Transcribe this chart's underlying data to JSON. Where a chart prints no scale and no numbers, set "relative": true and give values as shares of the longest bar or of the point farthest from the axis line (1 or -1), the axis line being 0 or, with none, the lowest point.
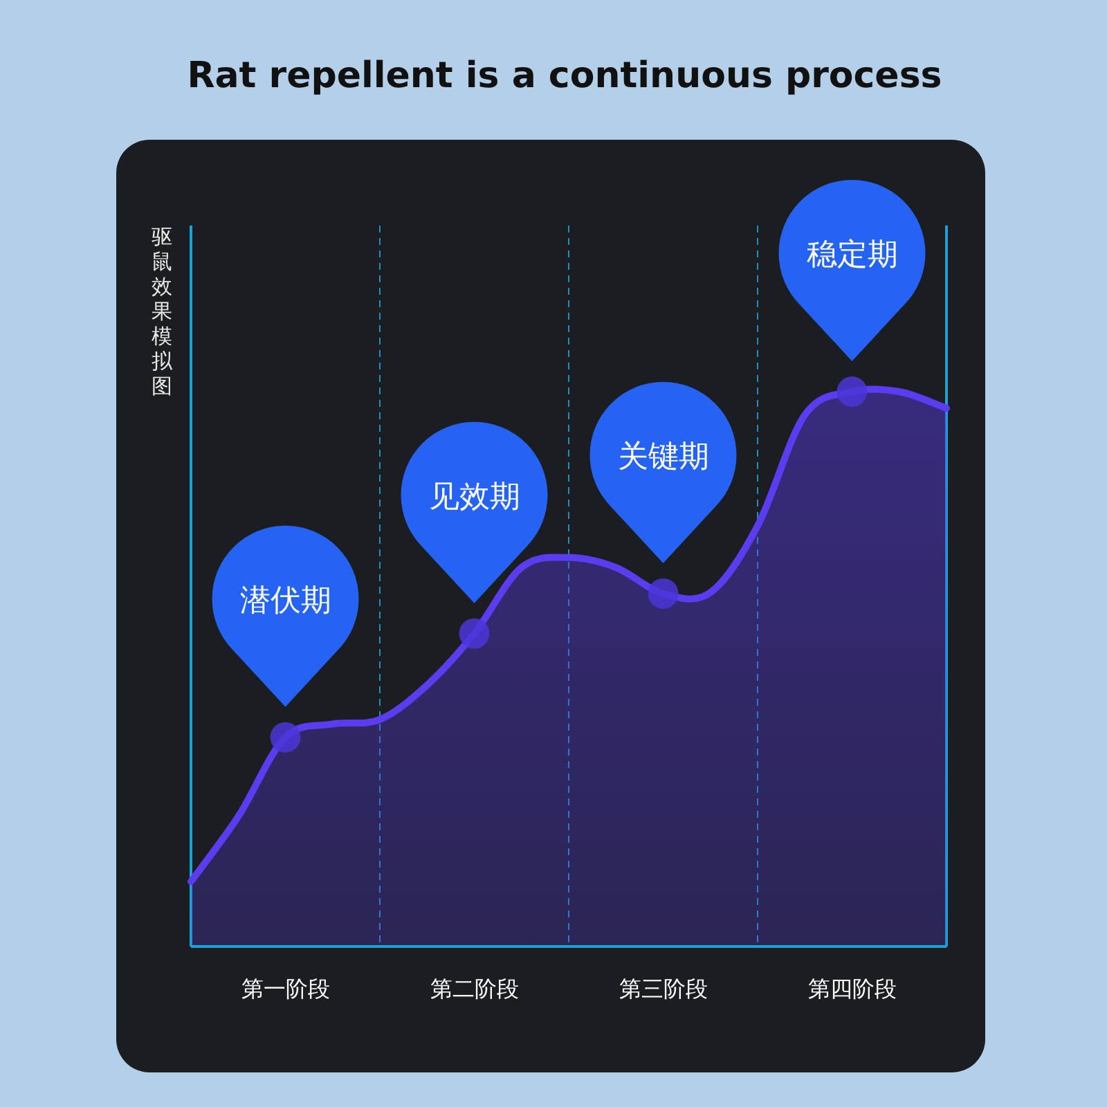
{
  "chart_data": {
    "type": "area",
    "relative": true,
    "title": "Rat repellent is a continuous process",
    "ylabel": "驱鼠效果模拟图",
    "categories": [
      null,
      null,
      "第一阶段",
      null,
      null,
      null,
      "第二阶段",
      null,
      null,
      null,
      "第三阶段",
      null,
      null,
      null,
      "第四阶段",
      null,
      null
    ],
    "series": [
      {
        "color": "#5b3cf0",
        "values": [
          0.117,
          0.234,
          0.377,
          0.401,
          0.409,
          0.471,
          0.564,
          0.683,
          0.701,
          0.683,
          0.636,
          0.638,
          0.758,
          0.958,
          1.0,
          1.0,
          0.97
        ]
      },
      {
        "type": "scatter",
        "color": "#4a36d8",
        "values": [
          null,
          null,
          0.377,
          null,
          null,
          null,
          0.564,
          null,
          null,
          null,
          0.636,
          null,
          null,
          null,
          1.0,
          null,
          null
        ]
      }
    ],
    "grid": "x",
    "annotations": [
      "潜伏期",
      "见效期",
      "关键期",
      "稳定期"
    ]
  }
}
